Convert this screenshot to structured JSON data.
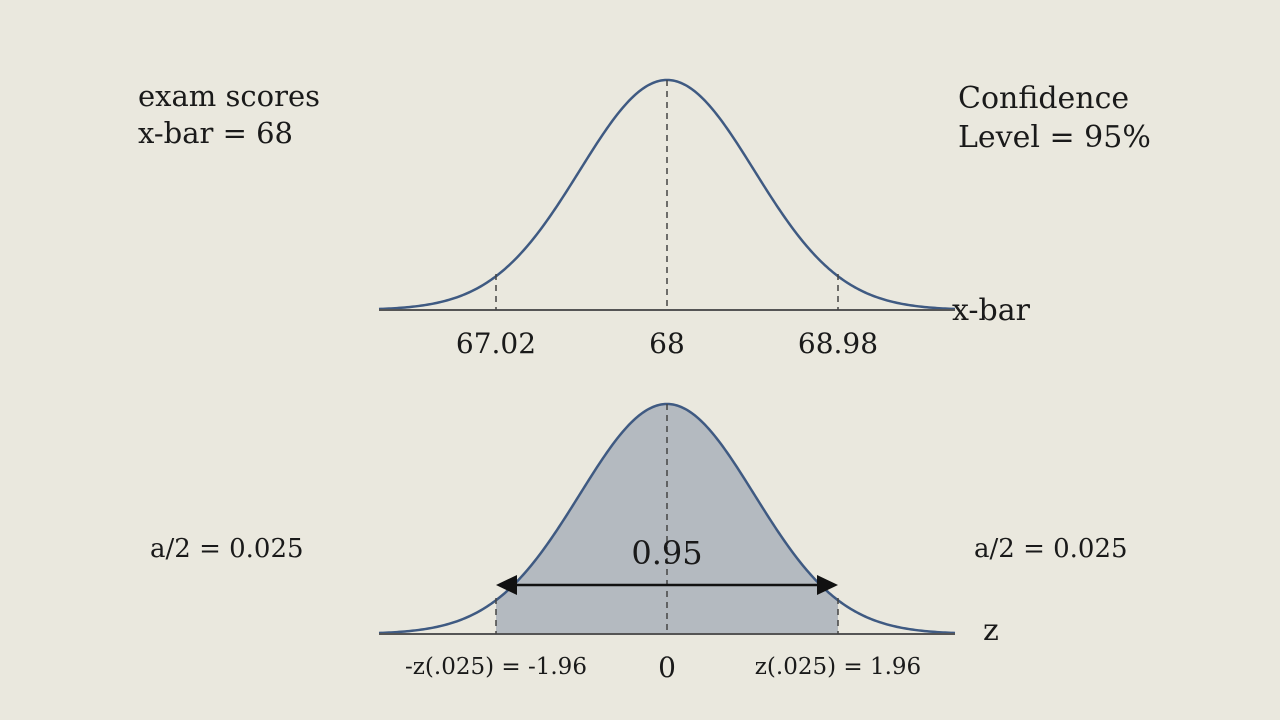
{
  "top_panel": {
    "note_line1": "exam scores",
    "note_line2": "x-bar = 68",
    "confidence_line1": "Confidence",
    "confidence_line2": "Level = 95%",
    "axis_label": "x-bar",
    "ticks": [
      {
        "value": "67.02"
      },
      {
        "value": "68"
      },
      {
        "value": "68.98"
      }
    ]
  },
  "bottom_panel": {
    "center_area_label": "0.95",
    "left_tail_label": "a/2 = 0.025",
    "right_tail_label": "a/2 = 0.025",
    "axis_label": "z",
    "ticks": [
      {
        "value": "-z(.025) = -1.96"
      },
      {
        "value": "0"
      },
      {
        "value": "z(.025) = 1.96"
      }
    ]
  },
  "colors": {
    "background": "#eae8de",
    "curve": "#3f5a82",
    "shade": "#b4bac0",
    "axis": "#555555",
    "dash": "#444444"
  }
}
